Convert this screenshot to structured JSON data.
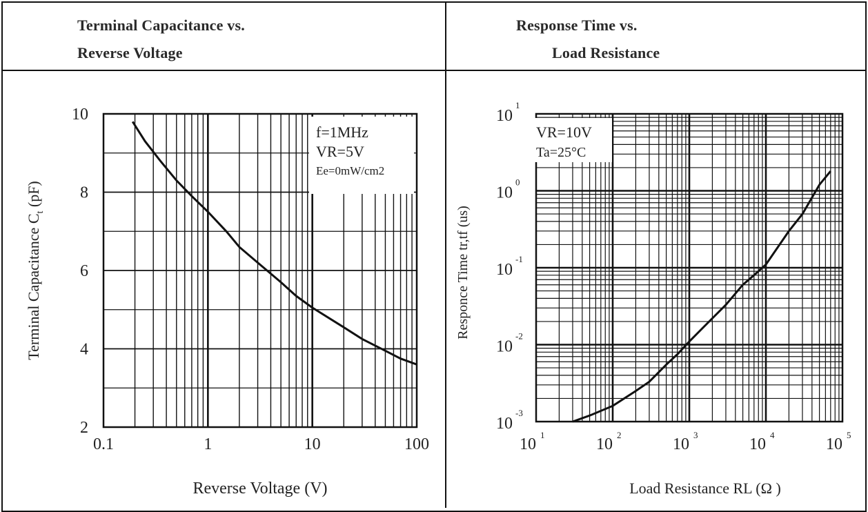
{
  "panels": [
    {
      "header": [
        "Terminal Capacitance vs.",
        "Reverse Voltage"
      ]
    },
    {
      "header": [
        "Response Time vs.",
        "Load Resistance"
      ]
    }
  ],
  "chart_data": [
    {
      "type": "line",
      "xscale": "log",
      "xlim": [
        0.1,
        100
      ],
      "ylim": [
        2,
        10
      ],
      "xlabel": "Reverse Voltage (V)",
      "ylabel": "Terminal Capacitance Ct (pF)",
      "ylabel_main": "Terminal Capacitance C",
      "ylabel_sub": "t",
      "ylabel_tail": " (pF)",
      "xticks": [
        0.1,
        1,
        10,
        100
      ],
      "xtick_labels": [
        "0.1",
        "1",
        "10",
        "100"
      ],
      "yticks": [
        2,
        4,
        6,
        8,
        10
      ],
      "ytick_labels": [
        "2",
        "4",
        "6",
        "8",
        "10"
      ],
      "grid": true,
      "annotations": [
        "f=1MHz",
        "VR=5V",
        "Ee=0mW/cm2"
      ],
      "series": [
        {
          "x": [
            0.19,
            0.25,
            0.35,
            0.5,
            0.7,
            1,
            1.5,
            2,
            3,
            5,
            7,
            10,
            20,
            30,
            50,
            70,
            100
          ],
          "y": [
            9.8,
            9.3,
            8.8,
            8.3,
            7.9,
            7.5,
            7.0,
            6.6,
            6.2,
            5.7,
            5.35,
            5.05,
            4.55,
            4.25,
            3.95,
            3.75,
            3.6
          ]
        }
      ]
    },
    {
      "type": "line",
      "xscale": "log",
      "yscale": "log",
      "xlim": [
        10,
        100000
      ],
      "ylim": [
        0.001,
        10
      ],
      "xlabel": "Load Resistance RL (Ω )",
      "ylabel": "Responce Time tr,tf (us)",
      "xtick_exponents": [
        "1",
        "2",
        "3",
        "4",
        "5"
      ],
      "ytick_exponents": [
        "1",
        "0",
        "-1",
        "-2",
        "-3"
      ],
      "tick_base": "10",
      "grid": true,
      "annotations": [
        "VR=10V",
        "Ta=25°C"
      ],
      "series": [
        {
          "x": [
            30,
            50,
            100,
            200,
            300,
            500,
            700,
            1000,
            2000,
            3000,
            5000,
            7000,
            10000,
            20000,
            30000,
            50000,
            70000
          ],
          "y": [
            0.001,
            0.0012,
            0.0016,
            0.0025,
            0.0033,
            0.0055,
            0.0075,
            0.011,
            0.022,
            0.033,
            0.06,
            0.08,
            0.11,
            0.3,
            0.5,
            1.2,
            1.8
          ]
        }
      ]
    }
  ]
}
